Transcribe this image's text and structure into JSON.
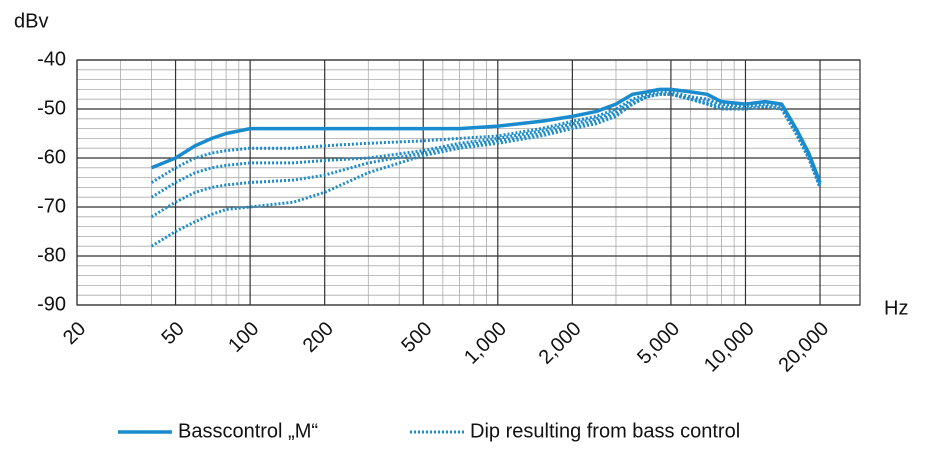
{
  "chart_data": {
    "type": "line",
    "x_label": "Hz",
    "y_label": "dBv",
    "x": [
      40,
      50,
      60,
      70,
      80,
      100,
      150,
      200,
      300,
      500,
      700,
      1000,
      1500,
      2000,
      2500,
      3000,
      3500,
      4000,
      4500,
      5000,
      6000,
      7000,
      8000,
      10000,
      12000,
      14000,
      16000,
      18000,
      20000
    ],
    "log_x": true,
    "xlim": [
      20,
      29000
    ],
    "xticks": [
      20,
      50,
      100,
      200,
      500,
      {
        "value": 1000,
        "label": "1,000"
      },
      {
        "value": 2000,
        "label": "2,000"
      },
      {
        "value": 5000,
        "label": "5,000"
      },
      {
        "value": 10000,
        "label": "10,000"
      },
      {
        "value": 20000,
        "label": "20,000"
      }
    ],
    "xminorticks": [
      30,
      40,
      60,
      70,
      80,
      90,
      300,
      400,
      600,
      700,
      800,
      900,
      3000,
      4000,
      6000,
      7000,
      8000,
      9000
    ],
    "ylim": [
      -90,
      -40
    ],
    "yticks": [
      -90,
      -80,
      -70,
      -60,
      -50,
      -40
    ],
    "yminorticks": [
      -88,
      -86,
      -84,
      -82,
      -78,
      -76,
      -74,
      -72,
      -68,
      -66,
      -64,
      -62,
      -58,
      -56,
      -54,
      -52,
      -48,
      -46,
      -44,
      -42
    ],
    "grid": true,
    "series": [
      {
        "name": "Basscontrol „M“",
        "color": "#1a8ccd",
        "style": "solid",
        "values": [
          -62,
          -60,
          -57.5,
          -56,
          -55,
          -54,
          -54,
          -54,
          -54,
          -54,
          -54,
          -53.5,
          -52.5,
          -51.5,
          -50.5,
          -49,
          -47,
          -46.5,
          -46,
          -46,
          -46.5,
          -47,
          -48.5,
          -49,
          -48.5,
          -49,
          -54,
          -59,
          -65
        ]
      },
      {
        "name": "Dip resulting from bass control",
        "color": "#1a8ccd",
        "style": "dotted",
        "values": [
          -65,
          -62,
          -60,
          -59,
          -58.5,
          -58,
          -58,
          -57.5,
          -57,
          -56.5,
          -56,
          -55.5,
          -54,
          -52.5,
          -51.5,
          -50,
          -48,
          -47,
          -46.5,
          -46.5,
          -47.5,
          -48,
          -49,
          -49.5,
          -49,
          -49.5,
          -54,
          -59.5,
          -65.5
        ]
      },
      {
        "color": "#1a8ccd",
        "style": "dotted",
        "values": [
          -68,
          -65,
          -63,
          -62,
          -61.5,
          -61,
          -61,
          -60.5,
          -60,
          -58.5,
          -57,
          -56,
          -54.5,
          -53,
          -52,
          -50.5,
          -48.5,
          -47.5,
          -47,
          -47,
          -48,
          -48.5,
          -49.5,
          -50,
          -49.5,
          -50,
          -54.5,
          -60,
          -66
        ]
      },
      {
        "color": "#1a8ccd",
        "style": "dotted",
        "values": [
          -72,
          -69,
          -67,
          -66,
          -65.5,
          -65,
          -64.5,
          -63.5,
          -61,
          -59,
          -57.5,
          -56.5,
          -55,
          -53.5,
          -52.5,
          -51,
          -49,
          -47.5,
          -47,
          -47,
          -48,
          -49,
          -50,
          -50,
          -49.5,
          -50,
          -55,
          -60,
          -66
        ]
      },
      {
        "color": "#1a8ccd",
        "style": "dotted",
        "values": [
          -78,
          -75,
          -73,
          -71.5,
          -70.5,
          -70,
          -69,
          -67,
          -63,
          -59.5,
          -58,
          -57,
          -55.5,
          -54,
          -53,
          -51.5,
          -49,
          -47.5,
          -47,
          -47,
          -48,
          -49,
          -50,
          -50,
          -49.5,
          -50,
          -55,
          -60,
          -66
        ]
      }
    ]
  }
}
